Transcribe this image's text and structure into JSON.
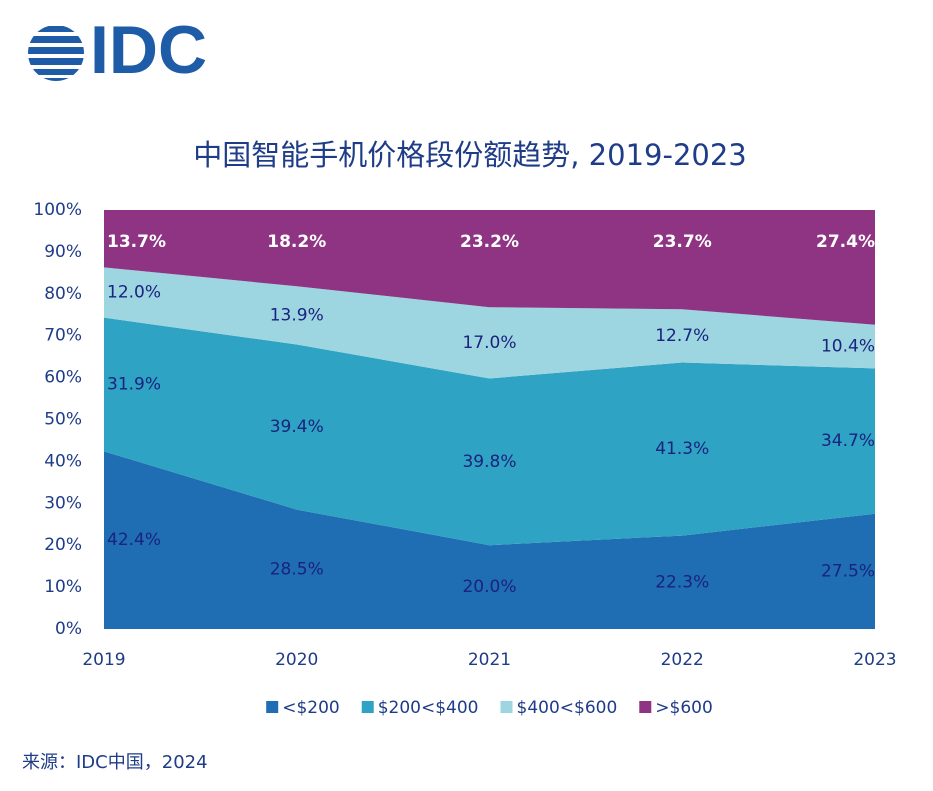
{
  "logo": "IDC",
  "chart_data": {
    "type": "stacked-area",
    "title": "中国智能手机价格段份额趋势, 2019-2023",
    "categories": [
      "2019",
      "2020",
      "2021",
      "2022",
      "2023"
    ],
    "series": [
      {
        "name": "<$200",
        "color": "#1f6db2",
        "values": [
          42.4,
          28.5,
          20.0,
          22.3,
          27.5
        ],
        "value_labels": [
          "42.4%",
          "28.5%",
          "20.0%",
          "22.3%",
          "27.5%"
        ]
      },
      {
        "name": "$200<$400",
        "color": "#2ea3c3",
        "values": [
          31.9,
          39.4,
          39.8,
          41.3,
          34.7
        ],
        "value_labels": [
          "31.9%",
          "39.4%",
          "39.8%",
          "41.3%",
          "34.7%"
        ]
      },
      {
        "name": "$400<$600",
        "color": "#9dd5e1",
        "values": [
          12.0,
          13.9,
          17.0,
          12.7,
          10.4
        ],
        "value_labels": [
          "12.0%",
          "13.9%",
          "17.0%",
          "12.7%",
          "10.4%"
        ]
      },
      {
        "name": ">$600",
        "color": "#8e3483",
        "values": [
          13.7,
          18.2,
          23.2,
          23.7,
          27.4
        ],
        "value_labels": [
          "13.7%",
          "18.2%",
          "23.2%",
          "23.7%",
          "27.4%"
        ]
      }
    ],
    "ylim": [
      0,
      100
    ],
    "yticks": [
      {
        "value": 0,
        "label": "0%"
      },
      {
        "value": 10,
        "label": "10%"
      },
      {
        "value": 20,
        "label": "20%"
      },
      {
        "value": 30,
        "label": "30%"
      },
      {
        "value": 40,
        "label": "40%"
      },
      {
        "value": 50,
        "label": "50%"
      },
      {
        "value": 60,
        "label": "60%"
      },
      {
        "value": 70,
        "label": "70%"
      },
      {
        "value": 80,
        "label": "80%"
      },
      {
        "value": 90,
        "label": "90%"
      },
      {
        "value": 100,
        "label": "100%"
      }
    ],
    "source": "来源：IDC中国，2024"
  }
}
